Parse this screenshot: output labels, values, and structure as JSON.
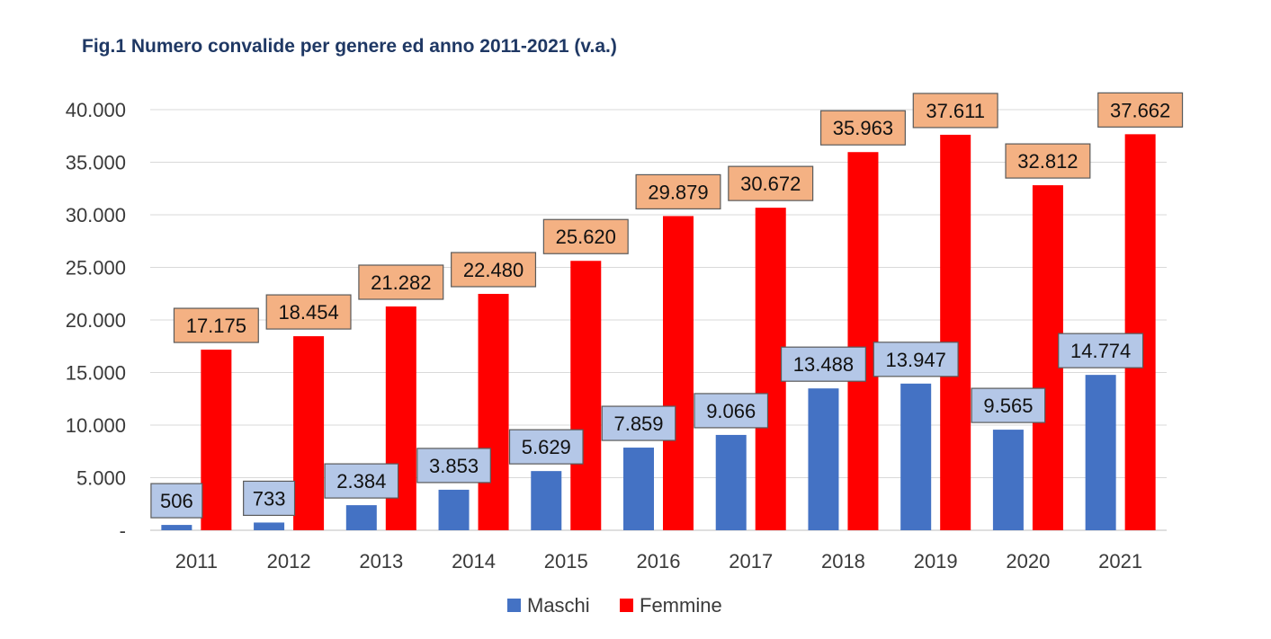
{
  "chart_data": {
    "type": "bar",
    "title": "Fig.1 Numero convalide per genere ed anno 2011-2021 (v.a.)",
    "categories": [
      "2011",
      "2012",
      "2013",
      "2014",
      "2015",
      "2016",
      "2017",
      "2018",
      "2019",
      "2020",
      "2021"
    ],
    "series": [
      {
        "name": "Maschi",
        "color": "#4472c4",
        "label_bg": "#b4c7e7",
        "values": [
          506,
          733,
          2384,
          3853,
          5629,
          7859,
          9066,
          13488,
          13947,
          9565,
          14774
        ],
        "labels": [
          "506",
          "733",
          "2.384",
          "3.853",
          "5.629",
          "7.859",
          "9.066",
          "13.488",
          "13.947",
          "9.565",
          "14.774"
        ]
      },
      {
        "name": "Femmine",
        "color": "#ff0000",
        "label_bg": "#f4b183",
        "values": [
          17175,
          18454,
          21282,
          22480,
          25620,
          29879,
          30672,
          35963,
          37611,
          32812,
          37662
        ],
        "labels": [
          "17.175",
          "18.454",
          "21.282",
          "22.480",
          "25.620",
          "29.879",
          "30.672",
          "35.963",
          "37.611",
          "32.812",
          "37.662"
        ]
      }
    ],
    "ylim": [
      0,
      40000
    ],
    "yticks": [
      0,
      5000,
      10000,
      15000,
      20000,
      25000,
      30000,
      35000,
      40000
    ],
    "ytick_labels": [
      "-",
      "5.000",
      "10.000",
      "15.000",
      "20.000",
      "25.000",
      "30.000",
      "35.000",
      "40.000"
    ],
    "grid": true,
    "legend_position": "bottom-center"
  }
}
